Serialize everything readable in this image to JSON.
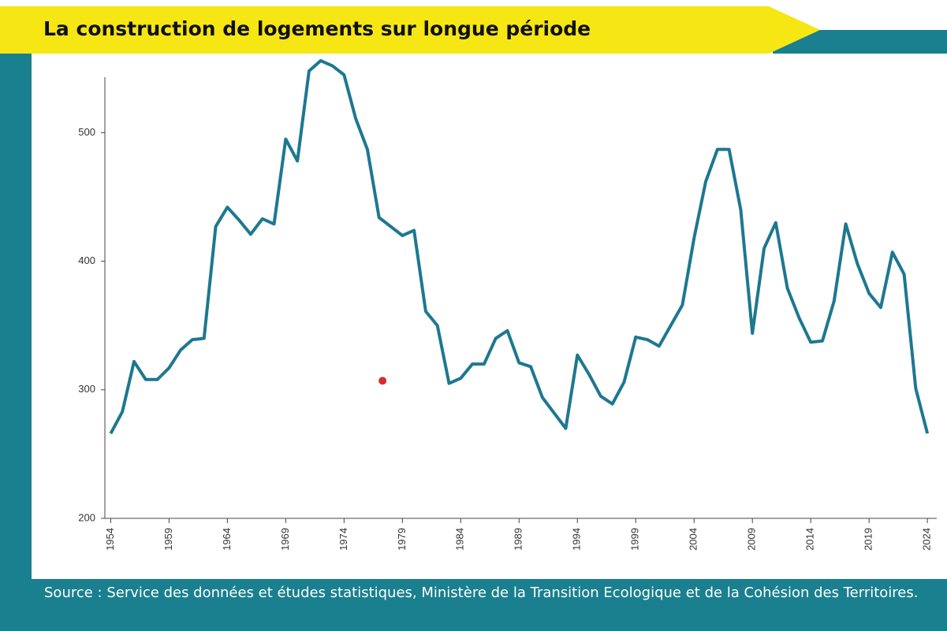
{
  "chart_data": {
    "type": "line",
    "title": "La construction de logements sur longue période",
    "source": "Source : Service des données et études statistiques, Ministère de la Transition Ecologique et de la Cohésion des Territoires.",
    "x": [
      1954,
      1955,
      1956,
      1957,
      1958,
      1959,
      1960,
      1961,
      1962,
      1963,
      1964,
      1965,
      1966,
      1967,
      1968,
      1969,
      1970,
      1971,
      1972,
      1973,
      1974,
      1975,
      1976,
      1977,
      1978,
      1979,
      1980,
      1981,
      1982,
      1983,
      1984,
      1985,
      1986,
      1987,
      1988,
      1989,
      1990,
      1991,
      1992,
      1993,
      1994,
      1995,
      1996,
      1997,
      1998,
      1999,
      2000,
      2001,
      2002,
      2003,
      2004,
      2005,
      2006,
      2007,
      2008,
      2009,
      2010,
      2011,
      2012,
      2013,
      2014,
      2015,
      2016,
      2017,
      2018,
      2019,
      2020,
      2021,
      2022,
      2023,
      2024
    ],
    "series": [
      {
        "color": "#1d7890",
        "values": [
          266,
          283,
          322,
          308,
          308,
          317,
          331,
          339,
          340,
          427,
          442,
          432,
          421,
          433,
          429,
          495,
          478,
          548,
          556,
          552,
          545,
          511,
          487,
          434,
          427,
          420,
          424,
          361,
          350,
          305,
          309,
          320,
          320,
          340,
          346,
          321,
          318,
          294,
          282,
          270,
          327,
          312,
          295,
          289,
          306,
          341,
          339,
          334,
          350,
          366,
          418,
          462,
          487,
          487,
          440,
          344,
          410,
          430,
          379,
          356,
          337,
          338,
          369,
          429,
          398,
          375,
          364,
          407,
          390,
          301,
          266
        ]
      }
    ],
    "marker": {
      "x": 1977.3,
      "y": 307,
      "color": "#d32f2f"
    },
    "xlim": [
      1953.5,
      2024.8
    ],
    "xticks": [
      1954,
      1959,
      1964,
      1969,
      1974,
      1979,
      1984,
      1989,
      1994,
      1999,
      2004,
      2009,
      2014,
      2019,
      2024
    ],
    "ylim": [
      200,
      545
    ],
    "yticks": [
      200,
      300,
      400,
      500
    ]
  }
}
